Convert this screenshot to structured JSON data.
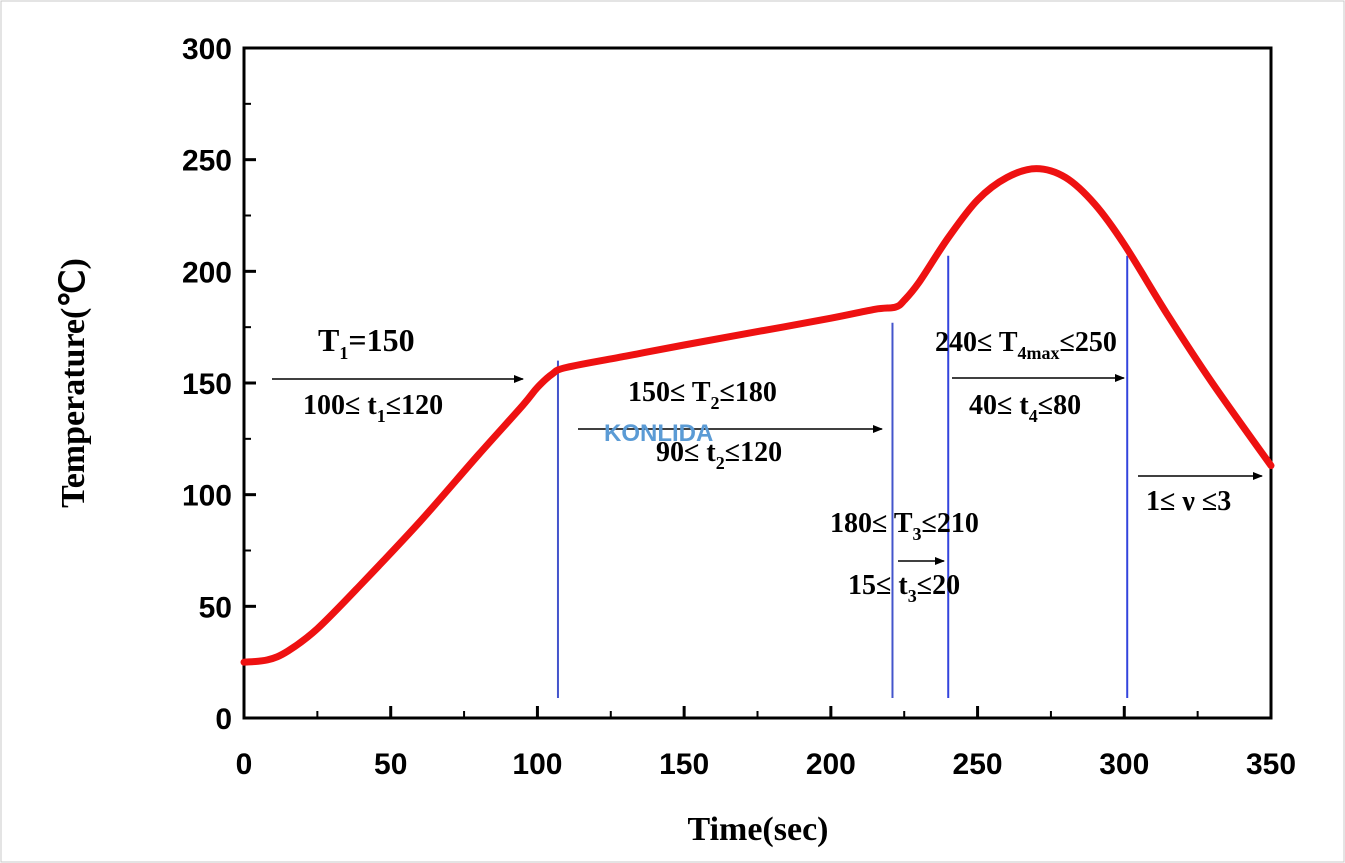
{
  "chart_data": {
    "type": "line",
    "xlabel": "Time(sec)",
    "ylabel": "Temperature(℃)",
    "xlim": [
      0,
      350
    ],
    "ylim": [
      0,
      300
    ],
    "x_ticks": [
      "0",
      "50",
      "100",
      "150",
      "200",
      "250",
      "300",
      "350"
    ],
    "y_ticks": [
      "0",
      "50",
      "100",
      "150",
      "200",
      "250",
      "300"
    ],
    "series": [
      {
        "color": "#ee1111",
        "x": [
          0,
          8,
          15,
          25,
          40,
          60,
          80,
          95,
          100,
          105,
          110,
          130,
          150,
          175,
          200,
          215,
          222,
          225,
          230,
          240,
          250,
          260,
          270,
          280,
          290,
          300,
          315,
          330,
          350
        ],
        "y": [
          25,
          26,
          30,
          40,
          60,
          88,
          118,
          140,
          148,
          154,
          157,
          162,
          167,
          173,
          179,
          183,
          184,
          187,
          195,
          215,
          232,
          242,
          246,
          242,
          230,
          212,
          180,
          150,
          113
        ]
      }
    ],
    "vertical_lines": [
      {
        "x": 107,
        "y_top": 160,
        "color": "#4455cc"
      },
      {
        "x": 221,
        "y_top": 177,
        "color": "#4455cc"
      },
      {
        "x": 240,
        "y_top": 207,
        "color": "#3344dd"
      },
      {
        "x": 301,
        "y_top": 207,
        "color": "#3344dd"
      }
    ],
    "annotations": [
      {
        "text": "T",
        "sub": "1",
        "rest": "=150"
      },
      {
        "text": "100≤ t",
        "sub": "1",
        "rest": "≤120"
      },
      {
        "text": "150≤ T",
        "sub": "2",
        "rest": "≤180"
      },
      {
        "text": "90≤ t",
        "sub": "2",
        "rest": "≤120"
      },
      {
        "text": "180≤ T",
        "sub": "3",
        "rest": "≤210"
      },
      {
        "text": "15≤ t",
        "sub": "3",
        "rest": "≤20"
      },
      {
        "text": "240≤ T",
        "sub": "4max",
        "rest": "≤250"
      },
      {
        "text": "40≤ t",
        "sub": "4",
        "rest": "≤80"
      },
      {
        "text": "1≤ ν ≤3",
        "sub": "",
        "rest": ""
      }
    ],
    "watermark": "KONLIDA",
    "grid": false,
    "legend": "none"
  }
}
